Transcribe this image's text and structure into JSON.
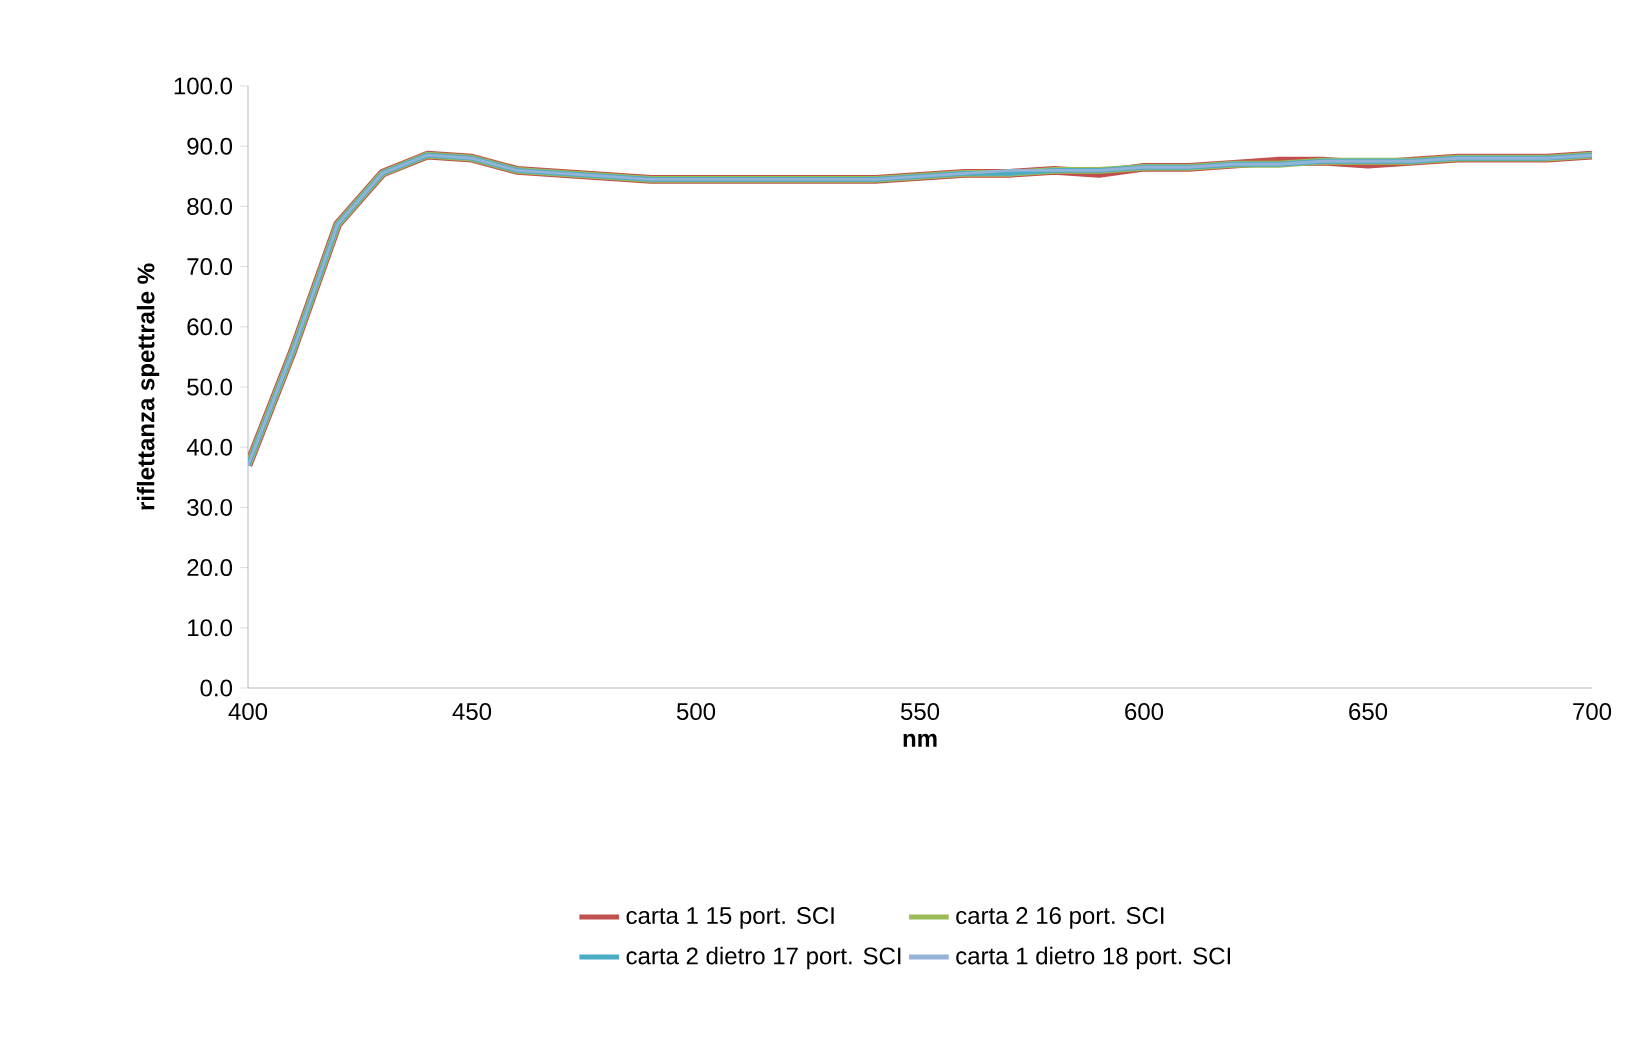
{
  "chart_data": {
    "type": "line",
    "xlabel": "nm",
    "ylabel": "riflettanza spettrale %",
    "x": [
      400,
      410,
      420,
      430,
      440,
      450,
      460,
      470,
      480,
      490,
      500,
      510,
      520,
      530,
      540,
      550,
      560,
      570,
      580,
      590,
      600,
      610,
      620,
      630,
      640,
      650,
      660,
      670,
      680,
      690,
      700
    ],
    "xlim": [
      400,
      700
    ],
    "xticks": [
      400,
      450,
      500,
      550,
      600,
      650,
      700
    ],
    "ylim": [
      0,
      100
    ],
    "yticks": [
      {
        "value": 0,
        "label": "0.0"
      },
      {
        "value": 10,
        "label": "10.0"
      },
      {
        "value": 20,
        "label": "20.0"
      },
      {
        "value": 30,
        "label": "30.0"
      },
      {
        "value": 40,
        "label": "40.0"
      },
      {
        "value": 50,
        "label": "50.0"
      },
      {
        "value": 60,
        "label": "60.0"
      },
      {
        "value": 70,
        "label": "70.0"
      },
      {
        "value": 80,
        "label": "80.0"
      },
      {
        "value": 90,
        "label": "90.0"
      },
      {
        "value": 100,
        "label": "100.0"
      }
    ],
    "grid": false,
    "legend": "bottom",
    "marker": "none",
    "line_style": "solid",
    "series": [
      {
        "name": "carta 1 15 port. SCI",
        "color": "#c0504d",
        "values": [
          37,
          56,
          77,
          85.5,
          88.5,
          88,
          86,
          85.5,
          85,
          84.5,
          84.5,
          84.5,
          84.5,
          84.5,
          84.5,
          85,
          85.5,
          85.5,
          86,
          85.5,
          86.5,
          86.5,
          87,
          87.5,
          87.5,
          87,
          87.5,
          88,
          88,
          88,
          88.5
        ]
      },
      {
        "name": "carta 2 16 port. SCI",
        "color": "#9bbb59",
        "values": [
          37,
          56,
          77,
          85.5,
          88.5,
          88,
          86,
          85.5,
          85,
          84.5,
          84.5,
          84.5,
          84.5,
          84.5,
          84.5,
          85,
          85.5,
          85.5,
          86,
          86,
          86.5,
          86.5,
          87,
          87,
          87.5,
          87.5,
          87.5,
          88,
          88,
          88,
          88.5
        ]
      },
      {
        "name": "carta 2 dietro 17 port. SCI",
        "color": "#4bacc6",
        "values": [
          37,
          56,
          77,
          85.5,
          88.5,
          88,
          86,
          85.5,
          85,
          84.5,
          84.5,
          84.5,
          84.5,
          84.5,
          84.5,
          85,
          85.5,
          85.5,
          86,
          86,
          86.5,
          86.5,
          87,
          87,
          87.5,
          87.5,
          87.5,
          88,
          88,
          88,
          88.5
        ]
      },
      {
        "name": "carta 1 dietro 18 port. SCI",
        "color": "#95b3d7",
        "values": [
          37,
          56,
          77,
          85.5,
          88.5,
          88,
          86,
          85.5,
          85,
          84.5,
          84.5,
          84.5,
          84.5,
          84.5,
          84.5,
          85,
          85.5,
          86,
          86,
          86,
          86.5,
          86.5,
          87,
          87,
          87.5,
          87.5,
          87.5,
          88,
          88,
          88,
          88.5
        ]
      }
    ]
  }
}
